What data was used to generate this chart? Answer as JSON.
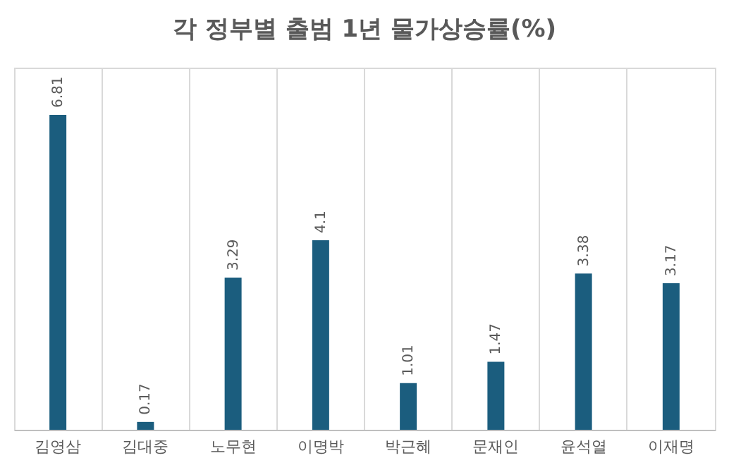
{
  "chart_data": {
    "type": "bar",
    "title": "각 정부별 출범 1년 물가상승률(%)",
    "categories": [
      "김영삼",
      "김대중",
      "노무현",
      "이명박",
      "박근혜",
      "문재인",
      "윤석열",
      "이재명"
    ],
    "values": [
      6.81,
      0.17,
      3.29,
      4.1,
      1.01,
      1.47,
      3.38,
      3.17
    ],
    "color": "#1b5d7e",
    "data_labels": true,
    "grid": "x"
  }
}
